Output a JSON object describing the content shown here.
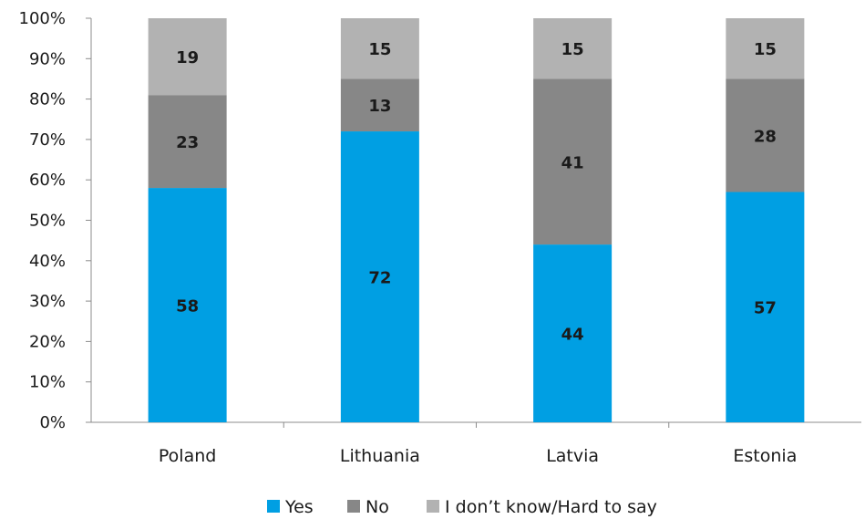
{
  "chart_data": {
    "type": "bar",
    "stacked": true,
    "categories": [
      "Poland",
      "Lithuania",
      "Latvia",
      "Estonia"
    ],
    "series": [
      {
        "name": "Yes",
        "values": [
          58,
          72,
          44,
          57
        ],
        "color": "#009fe3"
      },
      {
        "name": "No",
        "values": [
          23,
          13,
          41,
          28
        ],
        "color": "#878787"
      },
      {
        "name": "I don’t know/Hard to say",
        "values": [
          19,
          15,
          15,
          15
        ],
        "color": "#b2b2b2"
      }
    ],
    "title": "",
    "xlabel": "",
    "ylabel": "",
    "ylim": [
      0,
      100
    ],
    "yticks": [
      "0%",
      "10%",
      "20%",
      "30%",
      "40%",
      "50%",
      "60%",
      "70%",
      "80%",
      "90%",
      "100%"
    ],
    "grid": false,
    "legend_position": "bottom"
  }
}
